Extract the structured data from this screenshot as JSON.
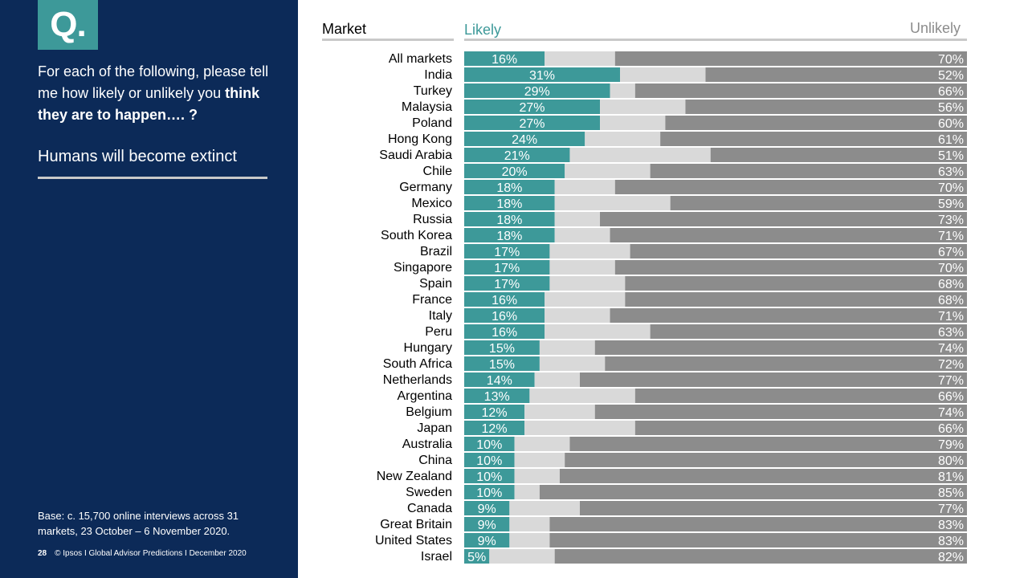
{
  "sidebar": {
    "badge": "Q.",
    "question_part1": "For each of the following, please tell me how likely or unlikely you ",
    "question_bold": "think they are to happen…. ?",
    "topic": "Humans will become extinct",
    "base_note": "Base: c. 15,700 online interviews across 31 markets,  23 October – 6 November 2020.",
    "page_number": "28",
    "footer_text": "© Ipsos I Global Advisor Predictions I December 2020"
  },
  "headers": {
    "market": "Market",
    "likely": "Likely",
    "unlikely": "Unlikely"
  },
  "colors": {
    "sidebar": "#0c2a58",
    "likely": "#3d9999",
    "neutral": "#d9d9d9",
    "unlikely": "#8c8c8c"
  },
  "chart_data": {
    "type": "bar",
    "orientation": "horizontal",
    "stacked": true,
    "normalized_to": 100,
    "categories": [
      "All markets",
      "India",
      "Turkey",
      "Malaysia",
      "Poland",
      "Hong Kong",
      "Saudi Arabia",
      "Chile",
      "Germany",
      "Mexico",
      "Russia",
      "South Korea",
      "Brazil",
      "Singapore",
      "Spain",
      "France",
      "Italy",
      "Peru",
      "Hungary",
      "South Africa",
      "Netherlands",
      "Argentina",
      "Belgium",
      "Japan",
      "Australia",
      "China",
      "New Zealand",
      "Sweden",
      "Canada",
      "Great Britain",
      "United States",
      "Israel"
    ],
    "series": [
      {
        "name": "Likely",
        "values": [
          16,
          31,
          29,
          27,
          27,
          24,
          21,
          20,
          18,
          18,
          18,
          18,
          17,
          17,
          17,
          16,
          16,
          16,
          15,
          15,
          14,
          13,
          12,
          12,
          10,
          10,
          10,
          10,
          9,
          9,
          9,
          5
        ]
      },
      {
        "values": [
          14,
          17,
          5,
          17,
          13,
          15,
          28,
          17,
          12,
          23,
          9,
          11,
          16,
          13,
          15,
          16,
          13,
          21,
          11,
          13,
          9,
          21,
          14,
          22,
          11,
          10,
          9,
          5,
          14,
          8,
          8,
          13
        ]
      },
      {
        "name": "Unlikely",
        "values": [
          70,
          52,
          66,
          56,
          60,
          61,
          51,
          63,
          70,
          59,
          73,
          71,
          67,
          70,
          68,
          68,
          71,
          63,
          74,
          72,
          77,
          66,
          74,
          66,
          79,
          80,
          81,
          85,
          77,
          83,
          83,
          82
        ]
      }
    ],
    "label_format": "{v}%"
  }
}
